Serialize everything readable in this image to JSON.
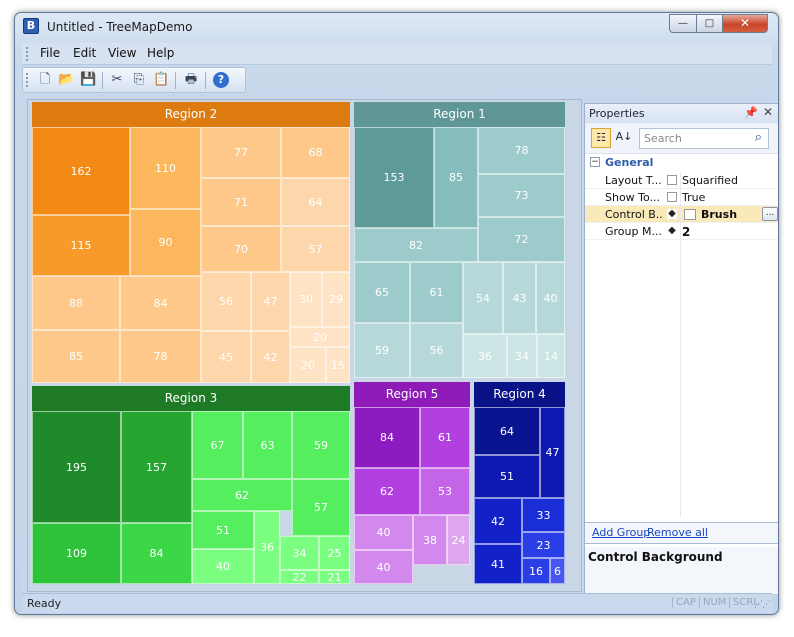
{
  "window": {
    "title": "Untitled - TreeMapDemo",
    "icon_letter": "B",
    "min_glyph": "—",
    "max_glyph": "□",
    "close_glyph": "✕"
  },
  "menu": {
    "items": [
      "File",
      "Edit",
      "View",
      "Help"
    ]
  },
  "toolbar": {
    "icons": [
      "new-icon",
      "open-icon",
      "save-icon",
      "cut-icon",
      "copy-icon",
      "paste-icon",
      "print-icon",
      "help-icon"
    ],
    "glyphs": [
      "🗋",
      "📂",
      "💾",
      "✂",
      "⎘",
      "📋",
      "🖶",
      "?"
    ]
  },
  "treemap": {
    "regions": [
      {
        "name": "Region 2",
        "header_color": "#dd7b11",
        "cells": [
          162,
          110,
          77,
          68,
          71,
          64,
          115,
          90,
          70,
          57,
          88,
          84,
          56,
          47,
          30,
          29,
          20,
          85,
          78,
          45,
          42,
          20,
          15
        ]
      },
      {
        "name": "Region 1",
        "header_color": "#5f9796",
        "cells": [
          153,
          85,
          78,
          73,
          82,
          72,
          65,
          61,
          54,
          43,
          40,
          59,
          56,
          36,
          34,
          14
        ]
      },
      {
        "name": "Region 3",
        "header_color": "#1f7a26",
        "cells": [
          195,
          157,
          67,
          63,
          59,
          62,
          57,
          109,
          84,
          51,
          36,
          34,
          25,
          40,
          22,
          21
        ]
      },
      {
        "name": "Region 5",
        "header_color": "#8e1bb8",
        "cells": [
          84,
          61,
          62,
          53,
          40,
          38,
          24,
          40
        ]
      },
      {
        "name": "Region 4",
        "header_color": "#0a1288",
        "cells": [
          64,
          47,
          51,
          42,
          33,
          23,
          41,
          16,
          6
        ]
      }
    ]
  },
  "properties": {
    "title": "Properties",
    "pin_glyph": "📌",
    "close_glyph": "✕",
    "categorized_icon": "☷",
    "alpha_icon": "A↓",
    "search_placeholder": "Search",
    "search_icon": "⌕",
    "category": "General",
    "category_toggle": "−",
    "rows": [
      {
        "name": "Layout T...",
        "value": "Squarified"
      },
      {
        "name": "Show To...",
        "value": "True"
      },
      {
        "name": "Control B...",
        "value": "Brush"
      },
      {
        "name": "Group M...",
        "value": "2"
      }
    ],
    "ellipsis": "...",
    "links": [
      "Add Group",
      "Remove all"
    ],
    "description": "Control Background"
  },
  "status": {
    "text": "Ready",
    "indicators": [
      "CAP",
      "NUM",
      "SCRL"
    ]
  },
  "colors": {
    "orange": "#f79a2e",
    "teal": "#6fb0ae",
    "green": "#2db83a",
    "purple": "#b33de0",
    "blue": "#1221b8"
  }
}
